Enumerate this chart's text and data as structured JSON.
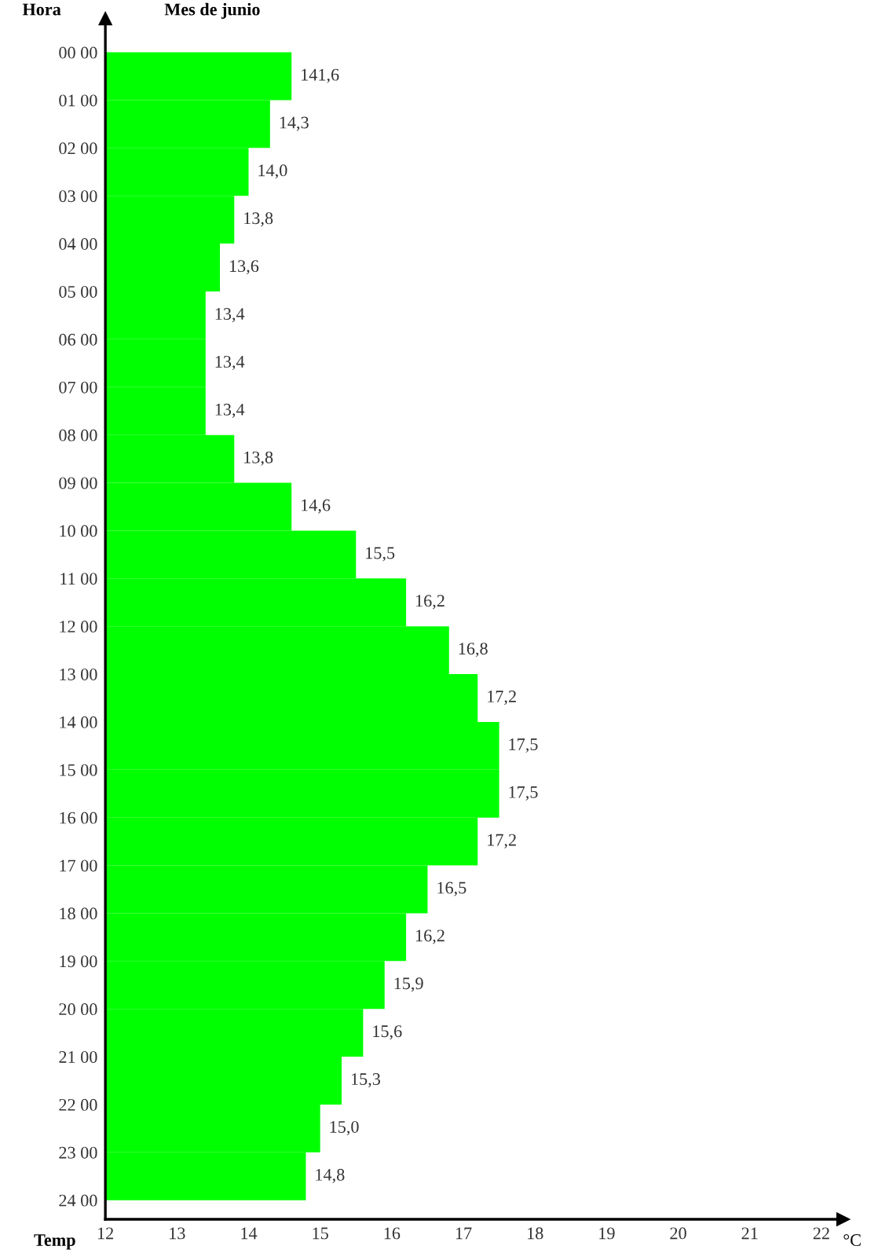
{
  "chart_data": {
    "type": "bar",
    "orientation": "horizontal",
    "title": "Mes de junio",
    "xlabel": "Temp",
    "ylabel": "Hora",
    "annotations": [
      "°C",
      {
        "text": "141,6",
        "x": 14.6,
        "y": "00 00"
      }
    ],
    "categories": [
      "00 00",
      "01 00",
      "02 00",
      "03 00",
      "04 00",
      "05 00",
      "06 00",
      "07 00",
      "08 00",
      "09 00",
      "10 00",
      "11 00",
      "12 00",
      "13 00",
      "14 00",
      "15 00",
      "16 00",
      "17 00",
      "18 00",
      "19 00",
      "20 00",
      "21 00",
      "22 00",
      "23 00",
      "24 00"
    ],
    "values": [
      14.6,
      14.3,
      14.0,
      13.8,
      13.6,
      13.4,
      13.4,
      13.4,
      13.8,
      14.6,
      15.5,
      16.2,
      16.8,
      17.2,
      17.5,
      17.5,
      17.2,
      16.5,
      16.2,
      15.9,
      15.6,
      15.3,
      15.0,
      14.8,
      null
    ],
    "value_labels": [
      null,
      "14,3",
      "14,0",
      "13,8",
      "13,6",
      "13,4",
      "13,4",
      "13,4",
      "13,8",
      "14,6",
      "15,5",
      "16,2",
      "16,8",
      "17,2",
      "17,5",
      "17,5",
      "17,2",
      "16,5",
      "16,2",
      "15,9",
      "15,6",
      "15,3",
      "15,0",
      "14,8",
      null
    ],
    "color": "#00ff00",
    "xlim": [
      12,
      22.3
    ],
    "xticks": [
      12,
      13,
      14,
      15,
      16,
      17,
      18,
      19,
      20,
      21,
      22
    ],
    "grid": false,
    "legend": false
  }
}
